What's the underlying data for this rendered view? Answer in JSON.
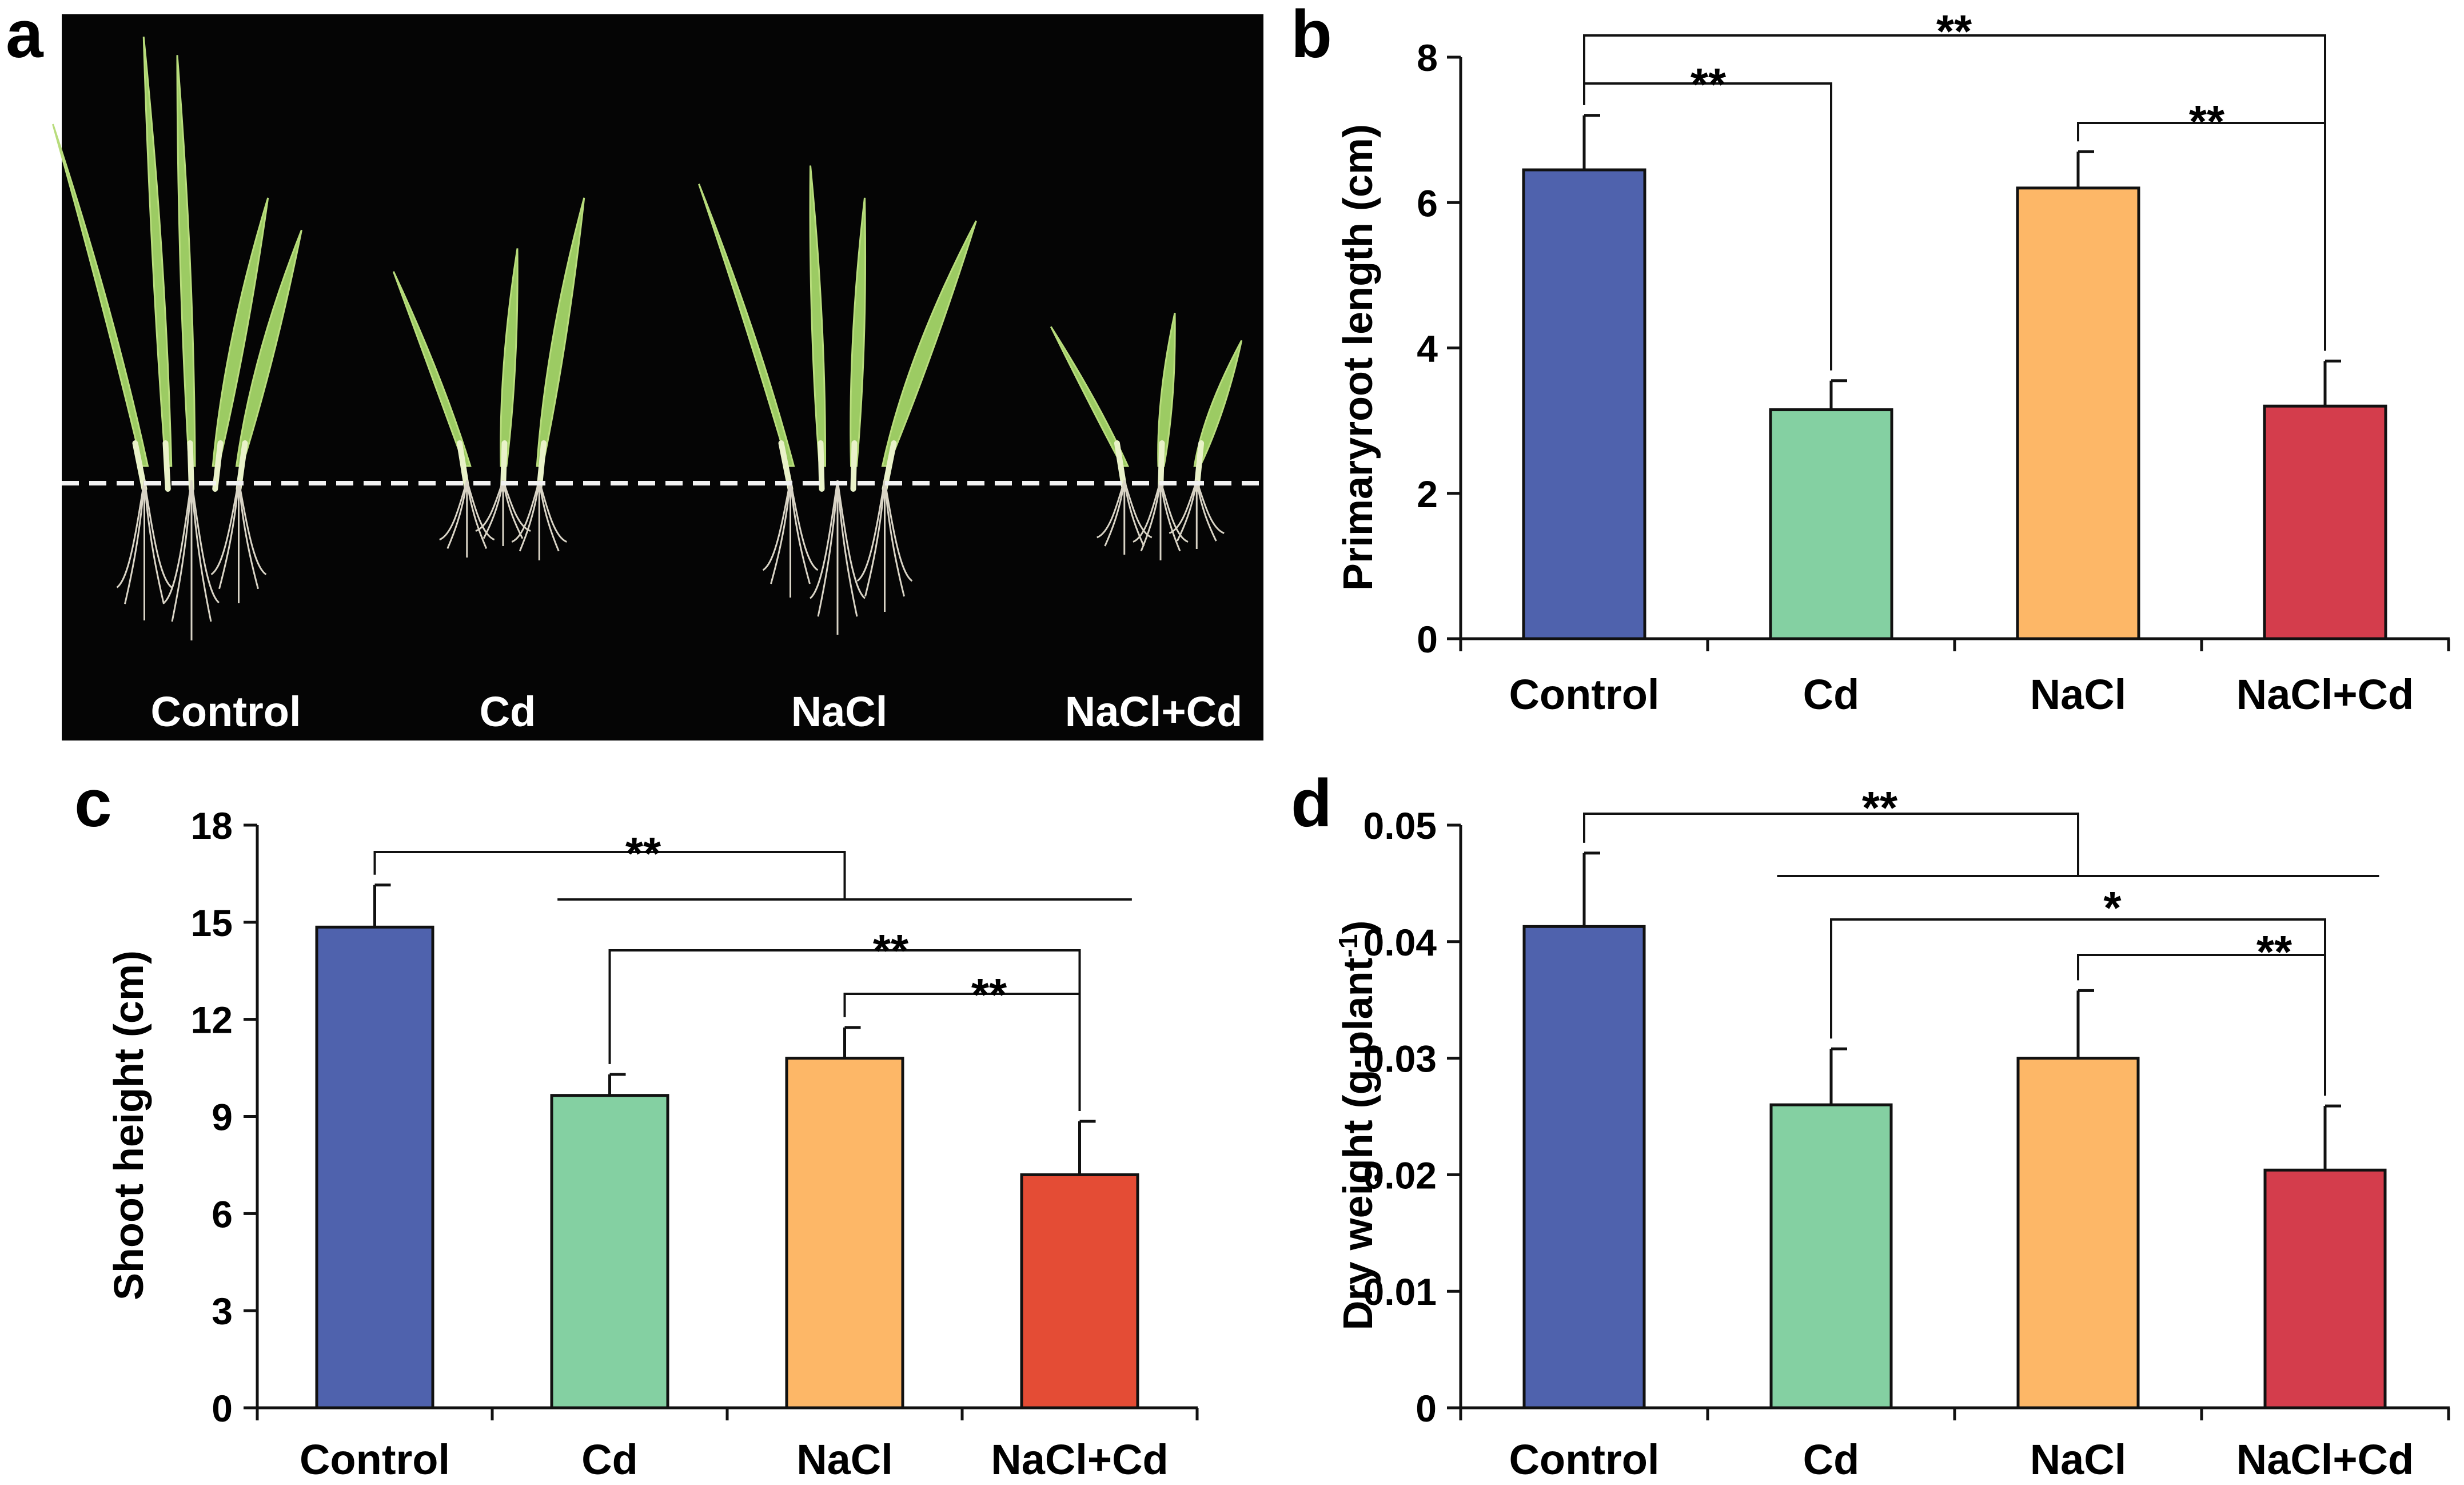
{
  "photo": {
    "panel_label": "a",
    "dashed_line": true,
    "groups": [
      {
        "label": "Control",
        "leaf_heights": [
          0.78,
          0.97,
          0.93,
          0.62,
          0.55
        ],
        "root_lengths": [
          0.48,
          0.55,
          0.42
        ]
      },
      {
        "label": "Cd",
        "leaf_heights": [
          0.46,
          0.51,
          0.62
        ],
        "root_lengths": [
          0.26,
          0.22,
          0.27
        ]
      },
      {
        "label": "NaCl",
        "leaf_heights": [
          0.65,
          0.69,
          0.62,
          0.57
        ],
        "root_lengths": [
          0.4,
          0.53,
          0.45
        ]
      },
      {
        "label": "NaCl+Cd",
        "leaf_heights": [
          0.34,
          0.37,
          0.31
        ],
        "root_lengths": [
          0.25,
          0.27,
          0.23
        ]
      }
    ]
  },
  "chart_data": [
    {
      "id": "b",
      "panel_label": "b",
      "type": "bar",
      "ylabel": "Primaryroot length (cm)",
      "xlabel": "",
      "ylim": [
        0,
        8
      ],
      "yticks": [
        "0",
        "2",
        "4",
        "6",
        "8"
      ],
      "categories": [
        "Control",
        "Cd",
        "NaCl",
        "NaCl+Cd"
      ],
      "values": [
        6.45,
        3.15,
        6.2,
        3.2
      ],
      "errors": [
        0.75,
        0.4,
        0.5,
        0.62
      ],
      "colors": [
        "#4f62ad",
        "#84d0a2",
        "#fdb767",
        "#d43d4c"
      ],
      "significance": [
        {
          "label": "**",
          "from": 0,
          "to": 1
        },
        {
          "label": "**",
          "from": 0,
          "to": 3
        },
        {
          "label": "**",
          "from": 2,
          "to": 3
        }
      ]
    },
    {
      "id": "c",
      "panel_label": "c",
      "type": "bar",
      "ylabel": "Shoot height (cm)",
      "xlabel": "",
      "ylim": [
        0,
        18
      ],
      "yticks": [
        "0",
        "3",
        "6",
        "9",
        "12",
        "15",
        "18"
      ],
      "categories": [
        "Control",
        "Cd",
        "NaCl",
        "NaCl+Cd"
      ],
      "values": [
        14.85,
        9.65,
        10.8,
        7.2
      ],
      "errors": [
        1.3,
        0.65,
        0.95,
        1.65
      ],
      "colors": [
        "#4f62ad",
        "#84d0a2",
        "#fdb767",
        "#e44c35"
      ],
      "significance": [
        {
          "label": "**",
          "from": 0,
          "to": "1-3"
        },
        {
          "label": "**",
          "from": 1,
          "to": 3
        },
        {
          "label": "**",
          "from": 2,
          "to": 3
        }
      ]
    },
    {
      "id": "d",
      "panel_label": "d",
      "type": "bar",
      "ylabel": "Dry weight (g·plant",
      "ylabel_sup": "-1",
      "ylabel_end": ")",
      "xlabel": "",
      "ylim": [
        0,
        0.05
      ],
      "yticks": [
        "0",
        "0.01",
        "0.02",
        "0.03",
        "0.04",
        "0.05"
      ],
      "categories": [
        "Control",
        "Cd",
        "NaCl",
        "NaCl+Cd"
      ],
      "values": [
        0.0413,
        0.026,
        0.03,
        0.0204
      ],
      "errors": [
        0.0063,
        0.0048,
        0.0058,
        0.0055
      ],
      "colors": [
        "#4f62ad",
        "#84d0a2",
        "#fdb767",
        "#d43d4c"
      ],
      "significance": [
        {
          "label": "**",
          "from": 0,
          "to": "1-3"
        },
        {
          "label": "*",
          "from": 1,
          "to": 3
        },
        {
          "label": "**",
          "from": 2,
          "to": 3
        }
      ]
    }
  ]
}
